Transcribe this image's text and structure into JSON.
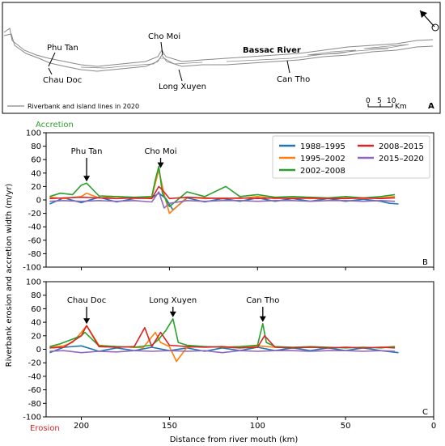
{
  "map": {
    "river_name": "Bassac River",
    "places": [
      "Phu Tan",
      "Chau Doc",
      "Cho Moi",
      "Long Xuyen",
      "Can Tho"
    ],
    "legend": "Riverbank and island lines in 2020",
    "scale_ticks": [
      "0",
      "5",
      "10"
    ],
    "scale_unit": "Km",
    "panel_label": "A",
    "line_color": "#888888"
  },
  "accretion_label": "Accretion",
  "erosion_label": "Erosion",
  "accretion_color": "#2ca02c",
  "erosion_color": "#d62728",
  "chart_data": [
    {
      "type": "line",
      "panel_label": "B",
      "ylabel": "Riverbank erosion and accretion width (m/yr)",
      "xlim": [
        220,
        0
      ],
      "ylim": [
        -100,
        100
      ],
      "x_ticks": [
        200,
        150,
        100,
        50,
        0
      ],
      "y_ticks": [
        100,
        80,
        60,
        40,
        20,
        0,
        -20,
        -40,
        -60,
        -80,
        -100
      ],
      "legend_position": "top-right",
      "legend_columns": 2,
      "annotations": [
        {
          "text": "Phu Tan",
          "x": 197,
          "y": 25
        },
        {
          "text": "Cho Moi",
          "x": 155,
          "y": 45
        }
      ],
      "series": [
        {
          "name": "1988–1995",
          "color": "#1f77b4",
          "x": [
            218,
            210,
            200,
            190,
            180,
            170,
            160,
            156,
            152,
            148,
            140,
            130,
            120,
            110,
            100,
            90,
            80,
            70,
            60,
            50,
            40,
            30,
            25,
            20
          ],
          "y": [
            -6,
            3,
            -4,
            4,
            -3,
            2,
            3,
            10,
            2,
            -15,
            3,
            -3,
            2,
            -2,
            3,
            -2,
            2,
            -2,
            2,
            -2,
            1,
            -2,
            -5,
            -6
          ]
        },
        {
          "name": "1995–2002",
          "color": "#ff7f0e",
          "x": [
            218,
            210,
            200,
            197,
            190,
            180,
            170,
            160,
            156,
            153,
            150,
            140,
            130,
            120,
            110,
            100,
            90,
            80,
            70,
            60,
            50,
            40,
            30,
            22
          ],
          "y": [
            4,
            2,
            5,
            10,
            3,
            5,
            2,
            4,
            45,
            8,
            -20,
            4,
            2,
            3,
            2,
            5,
            2,
            3,
            2,
            2,
            3,
            2,
            3,
            5
          ]
        },
        {
          "name": "2002–2008",
          "color": "#2ca02c",
          "x": [
            218,
            212,
            205,
            200,
            197,
            190,
            180,
            170,
            160,
            158,
            156,
            154,
            150,
            140,
            130,
            118,
            110,
            100,
            90,
            80,
            70,
            60,
            50,
            40,
            30,
            22
          ],
          "y": [
            5,
            10,
            8,
            22,
            25,
            6,
            5,
            4,
            5,
            30,
            50,
            10,
            -10,
            12,
            5,
            20,
            5,
            8,
            4,
            5,
            4,
            3,
            5,
            3,
            5,
            8
          ]
        },
        {
          "name": "2008–2015",
          "color": "#d62728",
          "x": [
            218,
            210,
            200,
            190,
            180,
            170,
            160,
            156,
            154,
            150,
            140,
            130,
            120,
            110,
            100,
            90,
            80,
            70,
            60,
            50,
            40,
            30,
            22
          ],
          "y": [
            2,
            3,
            4,
            3,
            2,
            3,
            2,
            20,
            15,
            2,
            4,
            3,
            2,
            3,
            2,
            3,
            2,
            3,
            2,
            2,
            3,
            2,
            3
          ]
        },
        {
          "name": "2015–2020",
          "color": "#9467bd",
          "x": [
            218,
            210,
            200,
            190,
            180,
            170,
            160,
            156,
            153,
            150,
            140,
            130,
            120,
            110,
            100,
            90,
            80,
            70,
            60,
            50,
            40,
            30,
            22
          ],
          "y": [
            -2,
            -1,
            -2,
            -1,
            -2,
            -1,
            -3,
            12,
            -12,
            -5,
            -1,
            -2,
            -1,
            -1,
            -2,
            -1,
            -1,
            -2,
            -1,
            -1,
            -2,
            -1,
            -2
          ]
        }
      ]
    },
    {
      "type": "line",
      "panel_label": "C",
      "xlabel": "Distance from river mouth (km)",
      "xlim": [
        220,
        0
      ],
      "ylim": [
        -100,
        100
      ],
      "x_ticks": [
        200,
        150,
        100,
        50,
        0
      ],
      "x_tick_labels": [
        "200",
        "150",
        "100",
        "50",
        "0"
      ],
      "y_ticks": [
        100,
        80,
        60,
        40,
        20,
        0,
        -20,
        -40,
        -60,
        -80,
        -100
      ],
      "annotations": [
        {
          "text": "Chau Doc",
          "x": 197,
          "y": 35
        },
        {
          "text": "Long Xuyen",
          "x": 148,
          "y": 45
        },
        {
          "text": "Can Tho",
          "x": 97,
          "y": 38
        }
      ],
      "series": [
        {
          "name": "1988–1995",
          "color": "#1f77b4",
          "x": [
            218,
            210,
            200,
            190,
            180,
            170,
            160,
            150,
            140,
            130,
            120,
            110,
            100,
            90,
            80,
            70,
            60,
            50,
            40,
            30,
            20
          ],
          "y": [
            -5,
            3,
            5,
            -3,
            2,
            -2,
            3,
            -2,
            2,
            -3,
            2,
            -2,
            3,
            -2,
            2,
            -2,
            2,
            -2,
            2,
            -2,
            -5
          ]
        },
        {
          "name": "1995–2002",
          "color": "#ff7f0e",
          "x": [
            218,
            210,
            205,
            200,
            197,
            190,
            180,
            170,
            165,
            158,
            155,
            150,
            146,
            140,
            130,
            120,
            110,
            100,
            90,
            80,
            70,
            60,
            50,
            40,
            30,
            22
          ],
          "y": [
            3,
            5,
            10,
            25,
            35,
            6,
            4,
            3,
            2,
            25,
            10,
            4,
            -18,
            3,
            4,
            3,
            2,
            5,
            3,
            2,
            3,
            2,
            3,
            2,
            3,
            4
          ]
        },
        {
          "name": "2002–2008",
          "color": "#2ca02c",
          "x": [
            218,
            212,
            205,
            200,
            198,
            190,
            180,
            170,
            160,
            156,
            152,
            148,
            145,
            140,
            130,
            120,
            110,
            100,
            97,
            95,
            90,
            80,
            70,
            60,
            50,
            40,
            30,
            22
          ],
          "y": [
            4,
            8,
            15,
            20,
            25,
            5,
            4,
            3,
            6,
            15,
            28,
            45,
            10,
            6,
            4,
            3,
            4,
            6,
            38,
            10,
            4,
            3,
            4,
            3,
            2,
            3,
            2,
            4
          ]
        },
        {
          "name": "2008–2015",
          "color": "#d62728",
          "x": [
            218,
            210,
            200,
            197,
            190,
            180,
            170,
            164,
            160,
            155,
            150,
            140,
            130,
            120,
            110,
            100,
            96,
            90,
            80,
            70,
            60,
            50,
            40,
            30,
            22
          ],
          "y": [
            2,
            3,
            20,
            35,
            4,
            3,
            4,
            32,
            4,
            25,
            6,
            4,
            3,
            4,
            2,
            3,
            20,
            3,
            2,
            3,
            2,
            3,
            2,
            3,
            2
          ]
        },
        {
          "name": "2015–2020",
          "color": "#9467bd",
          "x": [
            218,
            210,
            200,
            190,
            180,
            170,
            160,
            150,
            140,
            130,
            120,
            110,
            100,
            90,
            80,
            70,
            60,
            50,
            40,
            30,
            22
          ],
          "y": [
            -3,
            -2,
            -5,
            -3,
            -4,
            -2,
            -3,
            -2,
            -3,
            -2,
            -5,
            -2,
            -3,
            -2,
            -2,
            -3,
            -2,
            -2,
            -3,
            -2,
            -3
          ]
        }
      ]
    }
  ]
}
